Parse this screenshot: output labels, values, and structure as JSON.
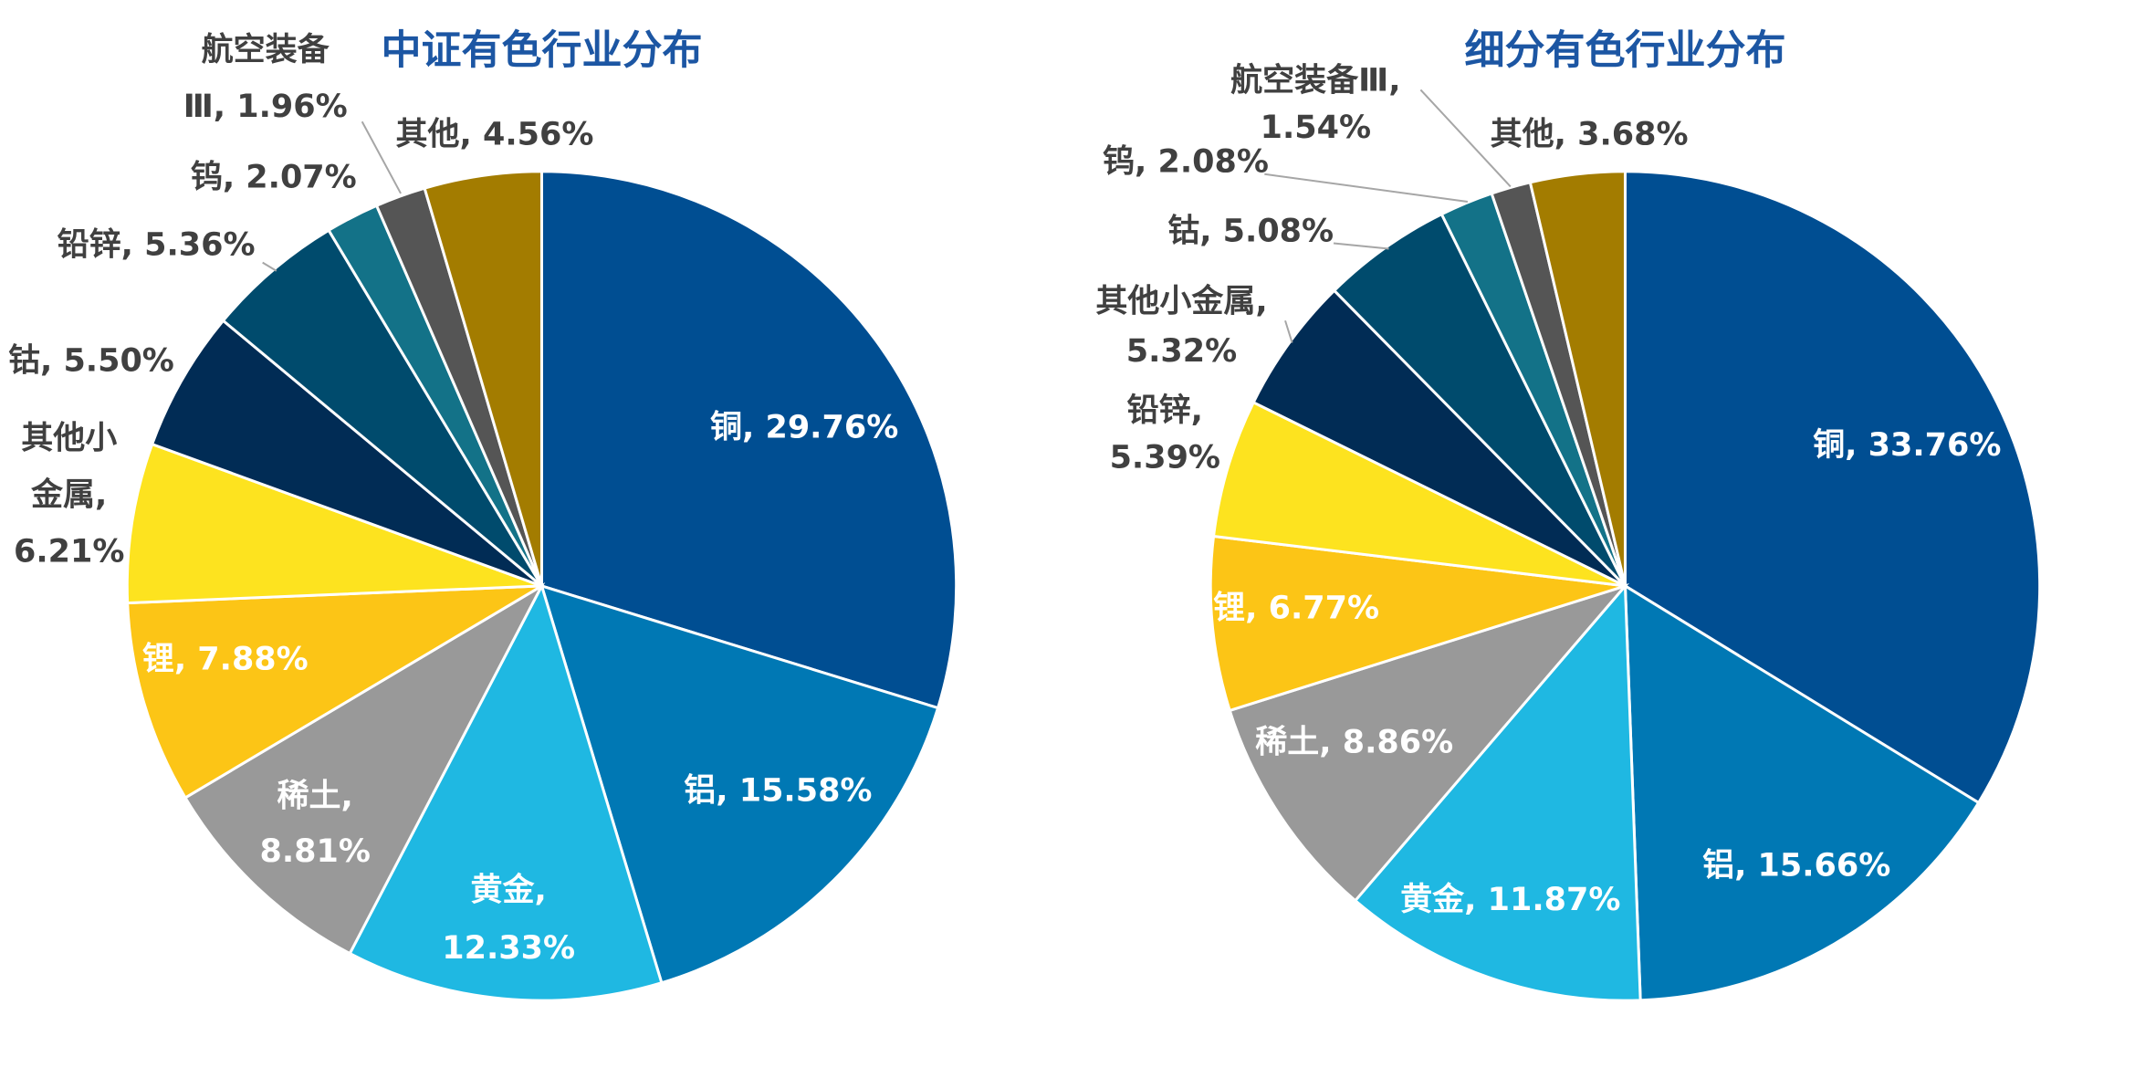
{
  "chart_data": [
    {
      "type": "pie",
      "title": "中证有色行业分布",
      "values": [
        29.76,
        15.58,
        12.33,
        8.81,
        7.88,
        6.21,
        5.5,
        5.36,
        2.07,
        1.96,
        4.56
      ],
      "value_labels": [
        [
          "铜, 29.76%"
        ],
        [
          "铝, 15.58%"
        ],
        [
          "黄金,",
          "12.33%"
        ],
        [
          "稀土,",
          "8.81%"
        ],
        [
          "锂, 7.88%"
        ],
        [
          "其他小",
          "金属,",
          "6.21%"
        ],
        [
          "钴, 5.50%"
        ],
        [
          "铅锌, 5.36%"
        ],
        [
          "钨, 2.07%"
        ],
        [
          "航空装备",
          "Ⅲ, 1.96%"
        ],
        [
          "其他, 4.56%"
        ]
      ],
      "colors": [
        "#004e92",
        "#0078b4",
        "#1fb8e2",
        "#999999",
        "#fcc516",
        "#fde31f",
        "#012c55",
        "#004b6d",
        "#137288",
        "#555555",
        "#a37c00"
      ]
    },
    {
      "type": "pie",
      "title": "细分有色行业分布",
      "values": [
        33.76,
        15.66,
        11.87,
        8.86,
        6.77,
        5.39,
        5.32,
        5.08,
        2.08,
        1.54,
        3.68
      ],
      "value_labels": [
        [
          "铜, 33.76%"
        ],
        [
          "铝, 15.66%"
        ],
        [
          "黄金, 11.87%"
        ],
        [
          "稀土, 8.86%"
        ],
        [
          "锂, 6.77%"
        ],
        [
          "铅锌,",
          "5.39%"
        ],
        [
          "其他小金属,",
          "5.32%"
        ],
        [
          "钴, 5.08%"
        ],
        [
          "钨, 2.08%"
        ],
        [
          "航空装备Ⅲ,",
          "1.54%"
        ],
        [
          "其他, 3.68%"
        ]
      ],
      "colors": [
        "#004e92",
        "#0078b4",
        "#1fb8e2",
        "#999999",
        "#fcc516",
        "#fde31f",
        "#012c55",
        "#004b6d",
        "#137288",
        "#555555",
        "#a37c00"
      ]
    }
  ]
}
